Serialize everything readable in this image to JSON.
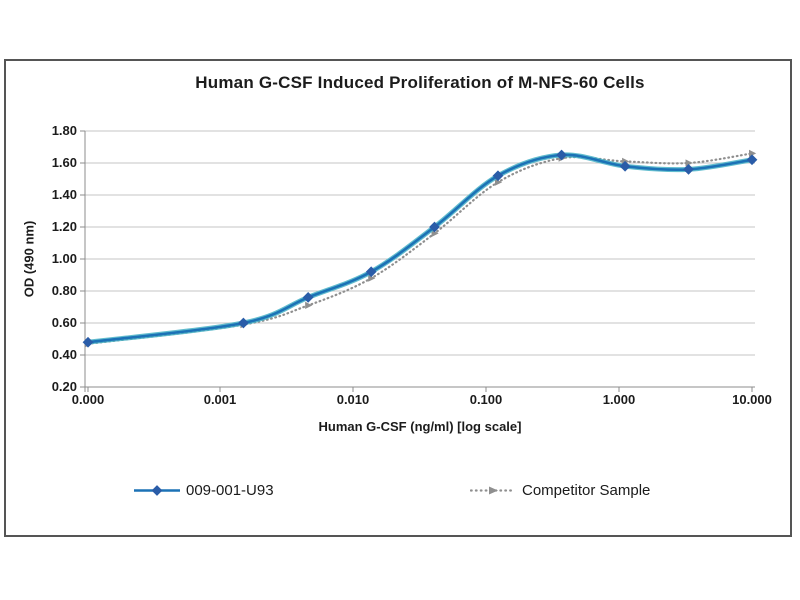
{
  "chart_data": {
    "type": "line",
    "title": "Human G-CSF Induced Proliferation of M-NFS-60 Cells",
    "xlabel": "Human G-CSF (ng/ml) [log scale]",
    "ylabel": "OD (490 nm)",
    "x_scale": "log (with zero-dose point pinned to axis origin)",
    "ylim": [
      0.2,
      1.8
    ],
    "grid": "horizontal",
    "legend_position": "bottom",
    "y_ticks": [
      "1.80",
      "1.60",
      "1.40",
      "1.20",
      "1.00",
      "0.80",
      "0.60",
      "0.40",
      "0.20"
    ],
    "x_ticks": [
      {
        "label": "0.000",
        "value": 0
      },
      {
        "label": "0.001",
        "value": 0.001
      },
      {
        "label": "0.010",
        "value": 0.01
      },
      {
        "label": "0.100",
        "value": 0.1
      },
      {
        "label": "1.000",
        "value": 1
      },
      {
        "label": "10.000",
        "value": 10
      }
    ],
    "x": [
      0,
      0.0015,
      0.0046,
      0.0137,
      0.041,
      0.123,
      0.37,
      1.111,
      3.333,
      10
    ],
    "series": [
      {
        "name": "009-001-U93",
        "line": "solid",
        "marker": "diamond",
        "values": [
          0.48,
          0.6,
          0.76,
          0.92,
          1.2,
          1.52,
          1.65,
          1.58,
          1.56,
          1.62
        ]
      },
      {
        "name": "Competitor Sample",
        "line": "dotted",
        "marker": "triangle-right",
        "values": [
          0.47,
          0.59,
          0.71,
          0.88,
          1.16,
          1.48,
          1.63,
          1.61,
          1.6,
          1.66
        ]
      }
    ]
  },
  "colors": {
    "product_line": "#1c72b6",
    "product_accent": "#45b0c6",
    "product_marker": "#2a5ca8",
    "competitor": "#8f8f8f",
    "grid": "#c6c6c6",
    "axis": "#8c8c8c",
    "frame_border": "#555555",
    "text": "#1c1c1c"
  }
}
